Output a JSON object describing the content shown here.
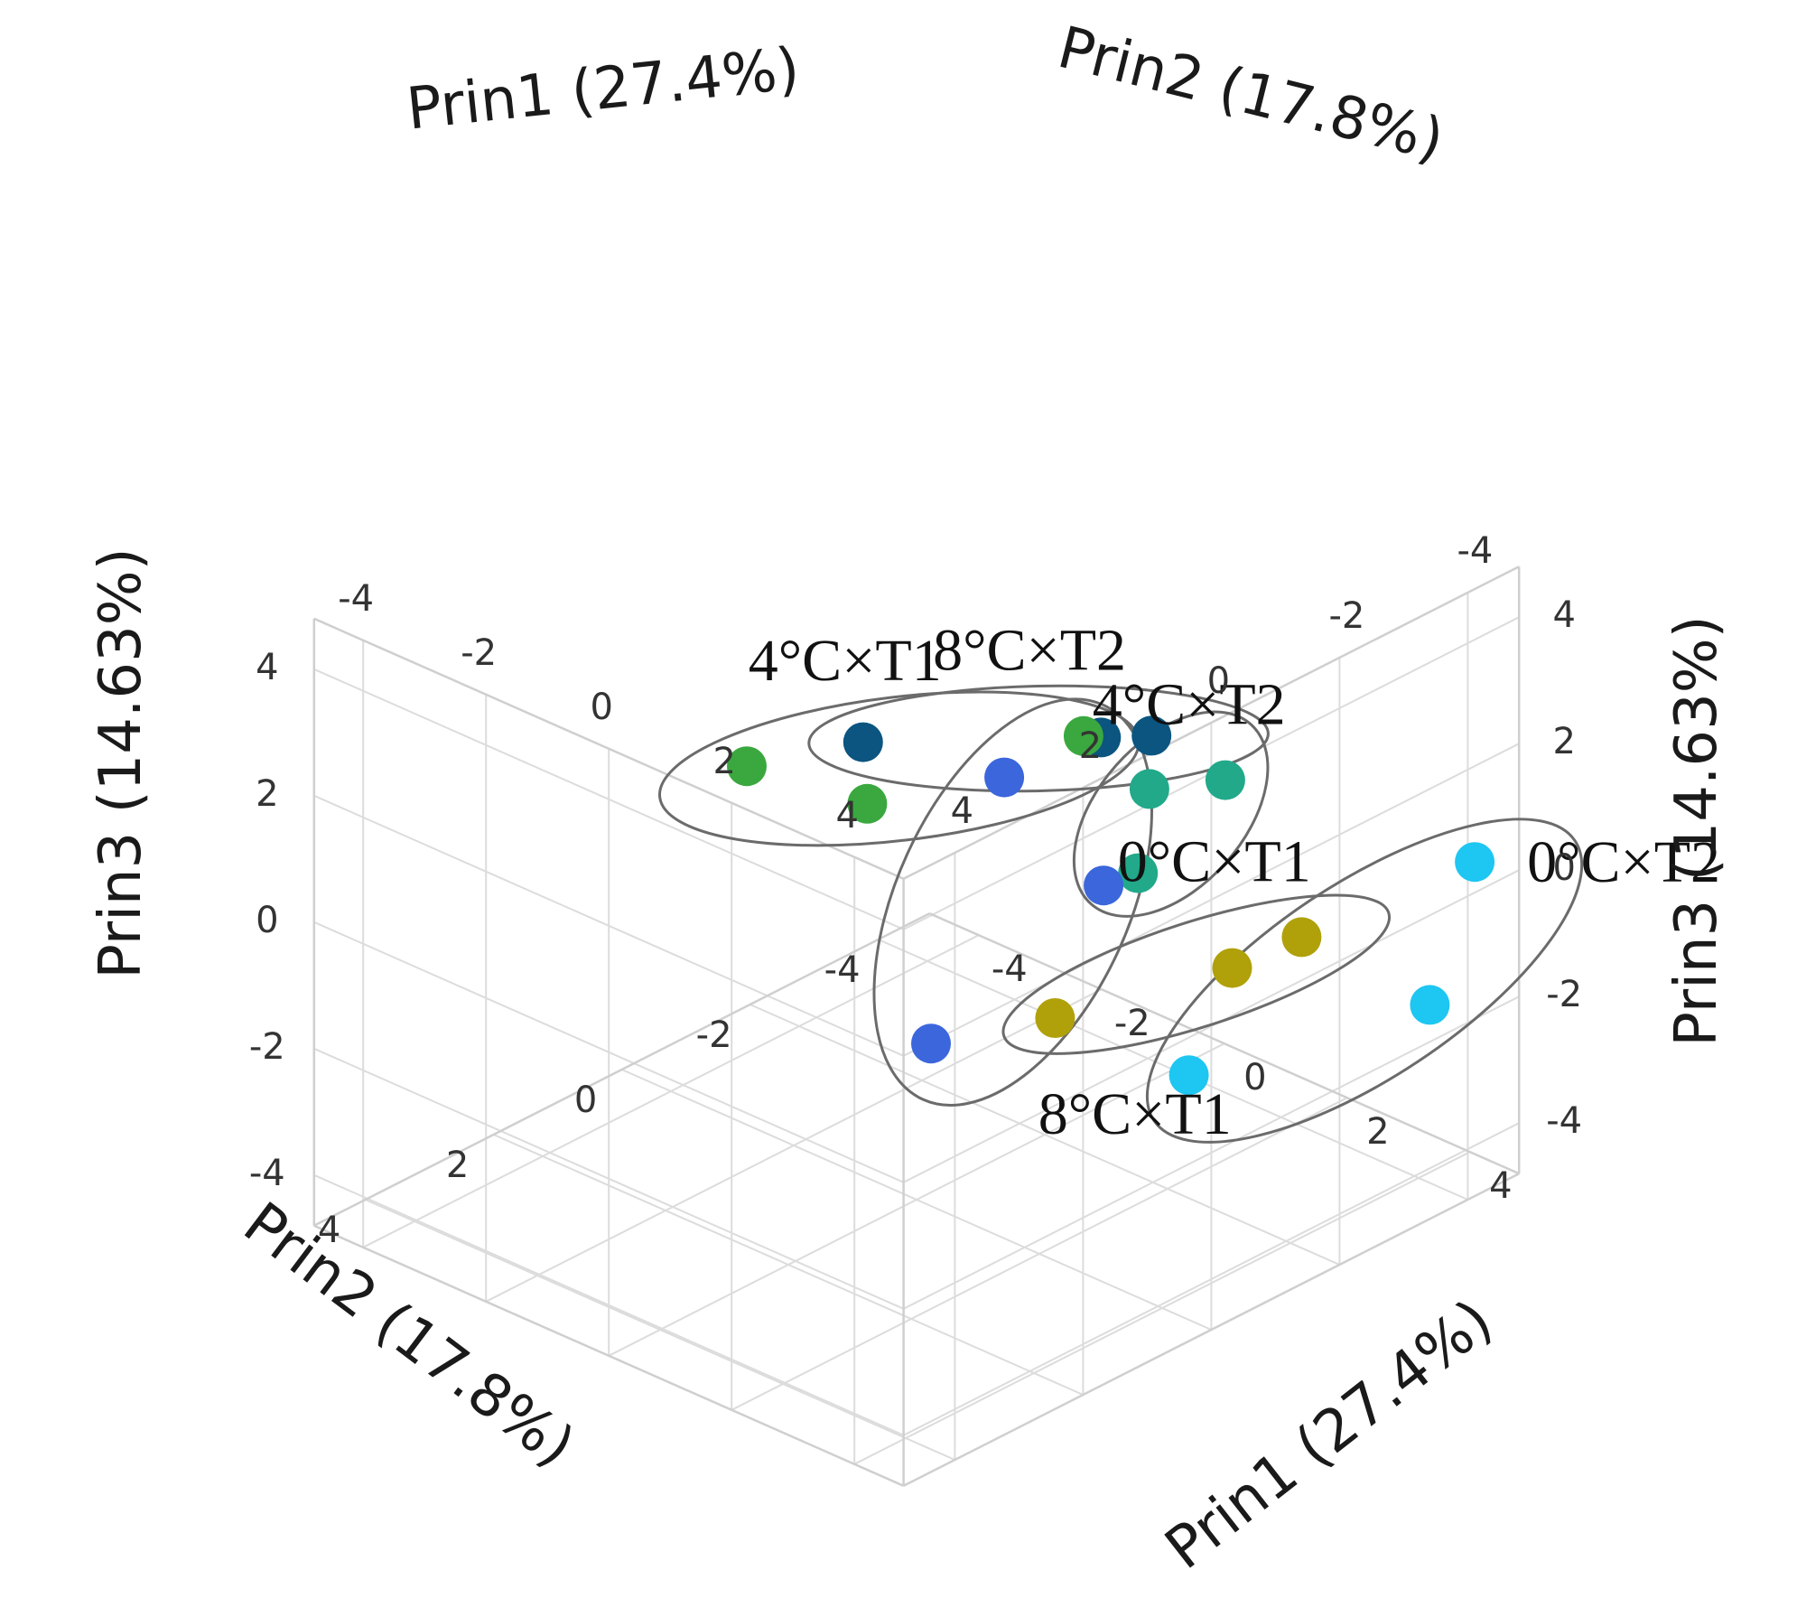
{
  "chart_data": {
    "type": "scatter",
    "subtype": "3d-pca-scatter",
    "axes": {
      "x": {
        "label": "Prin1 (27.4%)",
        "ticks": [
          "-4",
          "-2",
          "0",
          "2",
          "4"
        ]
      },
      "y": {
        "label": "Prin2 (17.8%)",
        "ticks": [
          "-4",
          "-2",
          "0",
          "2",
          "4"
        ]
      },
      "z": {
        "label": "Prin3 (14.63%)",
        "ticks": [
          "-4",
          "-2",
          "0",
          "2",
          "4"
        ]
      },
      "range": [
        -4.8,
        4.8
      ]
    },
    "grid": true,
    "groups": [
      {
        "label": "8°C×T2",
        "color": "#0b5580",
        "points": [
          [
            0.8,
            1.6,
            3.6
          ],
          [
            2.9,
            -0.1,
            3.7
          ],
          [
            3.2,
            -0.6,
            3.6
          ]
        ]
      },
      {
        "label": "4°C×T1",
        "color": "#3aa83f",
        "points": [
          [
            -3.6,
            -0.8,
            0.1
          ],
          [
            -0.1,
            -2.7,
            1.1
          ],
          [
            -3.1,
            -2.2,
            -1.0
          ]
        ]
      },
      {
        "label": "4°C×T2",
        "color": "#21a98a",
        "points": [
          [
            1.6,
            -2.1,
            1.3
          ],
          [
            2.0,
            -2.9,
            1.2
          ],
          [
            1.1,
            -2.4,
            -0.4
          ]
        ]
      },
      {
        "label": "0°C×T1",
        "color": "#b0a10a",
        "points": [
          [
            3.3,
            1.0,
            0.0
          ],
          [
            4.2,
            -0.9,
            0.2
          ],
          [
            4.6,
            -1.6,
            0.5
          ]
        ]
      },
      {
        "label": "0°C×T2",
        "color": "#1ec6f2",
        "points": [
          [
            4.6,
            -4.3,
            0.3
          ],
          [
            3.6,
            -0.8,
            -1.7
          ],
          [
            4.6,
            -3.6,
            -1.6
          ]
        ]
      },
      {
        "label": "8°C×T1",
        "color": "#3b66dc",
        "points": [
          [
            -1.6,
            -2.9,
            -0.3
          ],
          [
            -0.4,
            -3.3,
            -1.7
          ],
          [
            -0.6,
            -0.8,
            -3.0
          ]
        ]
      }
    ]
  }
}
